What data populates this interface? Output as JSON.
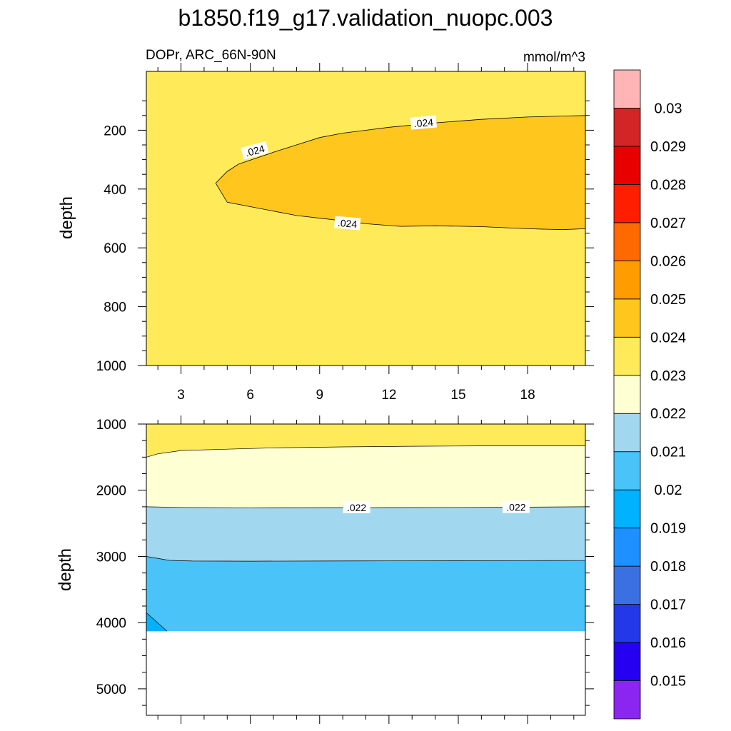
{
  "title": "b1850.f19_g17.validation_nuopc.003",
  "subtitle_left": "DOPr, ARC_66N-90N",
  "units": "mmol/m^3",
  "colors": {
    "level_fill": [
      "#8a26f0",
      "#2600f0",
      "#2338e8",
      "#3b70e2",
      "#1f90ff",
      "#00b2ff",
      "#4ac3f8",
      "#a1d7ef",
      "#ffffd4",
      "#ffea5a",
      "#ffc61d",
      "#ff9c00",
      "#ff6a00",
      "#ff1e00",
      "#e80000",
      "#d42526",
      "#ffb4b5"
    ],
    "line": "#000000",
    "background": "#ffffff"
  },
  "chart_data": [
    {
      "type": "contour",
      "panel": "top",
      "ylabel": "depth",
      "xlim": [
        1.5,
        20.5
      ],
      "ylim": [
        1000,
        0
      ],
      "x_ticks": [
        3,
        6,
        9,
        12,
        15,
        18
      ],
      "y_ticks": [
        200,
        400,
        600,
        800,
        1000
      ],
      "contour_labels": [
        ".024",
        ".024",
        ".024"
      ],
      "regions": [
        {
          "range": [
            0.023,
            0.024
          ],
          "description": "background"
        },
        {
          "range": [
            0.024,
            0.025
          ],
          "boundary": [
            [
              4.5,
              380
            ],
            [
              5,
              340
            ],
            [
              5.5,
              315
            ],
            [
              7,
              275
            ],
            [
              8,
              250
            ],
            [
              9,
              225
            ],
            [
              10,
              210
            ],
            [
              12,
              190
            ],
            [
              14,
              175
            ],
            [
              16,
              163
            ],
            [
              18,
              155
            ],
            [
              19.5,
              152
            ],
            [
              20.5,
              150
            ],
            [
              20.5,
              535
            ],
            [
              19.5,
              538
            ],
            [
              18,
              535
            ],
            [
              16,
              528
            ],
            [
              14,
              525
            ],
            [
              12.5,
              527
            ],
            [
              11,
              518
            ],
            [
              10,
              508
            ],
            [
              8,
              490
            ],
            [
              6,
              460
            ],
            [
              5,
              445
            ]
          ]
        }
      ]
    },
    {
      "type": "contour",
      "panel": "bottom",
      "ylabel": "depth",
      "xlim": [
        1.5,
        20.5
      ],
      "ylim": [
        5400,
        1000
      ],
      "y_ticks": [
        1000,
        2000,
        3000,
        4000,
        5000
      ],
      "data_bottom": 4130,
      "contour_labels": [
        ".022",
        ".022"
      ],
      "bands": [
        {
          "range": [
            0.023,
            0.024
          ],
          "upper": [],
          "lower": [
            [
              1.5,
              1500
            ],
            [
              2,
              1450
            ],
            [
              3,
              1400
            ],
            [
              5,
              1380
            ],
            [
              7,
              1360
            ],
            [
              10,
              1345
            ],
            [
              13,
              1335
            ],
            [
              16,
              1330
            ],
            [
              18,
              1330
            ],
            [
              20.5,
              1330
            ]
          ]
        },
        {
          "range": [
            0.022,
            0.023
          ],
          "lower": [
            [
              1.5,
              2250
            ],
            [
              3,
              2260
            ],
            [
              6,
              2265
            ],
            [
              9,
              2263
            ],
            [
              12,
              2262
            ],
            [
              15,
              2260
            ],
            [
              18,
              2255
            ],
            [
              20.5,
              2250
            ]
          ]
        },
        {
          "range": [
            0.021,
            0.022
          ],
          "lower": [
            [
              1.5,
              3000
            ],
            [
              2.5,
              3060
            ],
            [
              3.5,
              3070
            ],
            [
              6,
              3072
            ],
            [
              9,
              3070
            ],
            [
              12,
              3067
            ],
            [
              15,
              3065
            ],
            [
              18,
              3063
            ],
            [
              20.5,
              3062
            ]
          ]
        },
        {
          "range": [
            0.02,
            0.021
          ],
          "lower": [
            [
              1.5,
              4130
            ],
            [
              20.5,
              4130
            ]
          ]
        },
        {
          "range": [
            0.019,
            0.02
          ],
          "boundary": [
            [
              1.5,
              3850
            ],
            [
              2.4,
              4130
            ],
            [
              1.5,
              4130
            ]
          ]
        }
      ]
    }
  ],
  "colorbar": {
    "labels": [
      "0.015",
      "0.016",
      "0.017",
      "0.018",
      "0.019",
      "0.02",
      "0.021",
      "0.022",
      "0.023",
      "0.024",
      "0.025",
      "0.026",
      "0.027",
      "0.028",
      "0.029",
      "0.03"
    ]
  }
}
